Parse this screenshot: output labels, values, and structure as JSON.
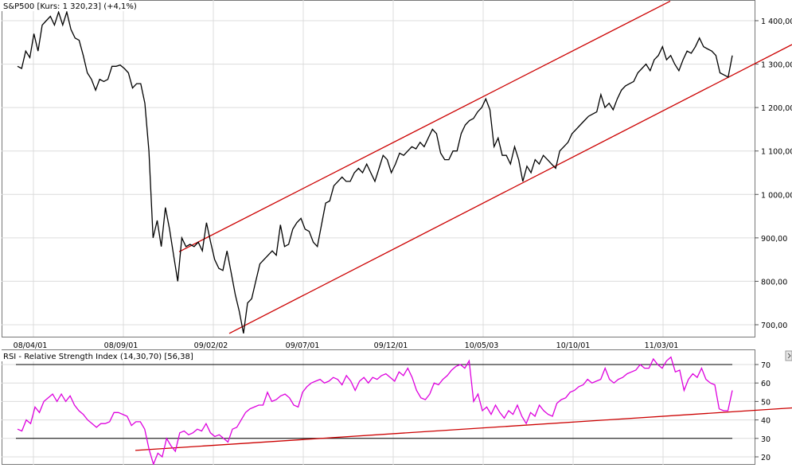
{
  "chart_data": [
    {
      "type": "line",
      "title": "S&P500 [Kurs: 1 320,23] (+4,1%)",
      "xlabel": "",
      "ylabel": "",
      "ylim": [
        680,
        1440
      ],
      "y_ticks": [
        "700,00",
        "800,00",
        "900,00",
        "1 000,00",
        "1 100,00",
        "1 200,00",
        "1 300,00",
        "1 400,00"
      ],
      "x_ticks": [
        "08/04/01",
        "08/09/01",
        "09/02/02",
        "09/07/01",
        "09/12/01",
        "10/05/03",
        "10/10/01",
        "11/03/01"
      ],
      "grid": true,
      "line_color": "#000000",
      "series": [
        {
          "values": [
            1295,
            1290,
            1330,
            1315,
            1370,
            1330,
            1390,
            1400,
            1410,
            1390,
            1420,
            1390,
            1420,
            1380,
            1360,
            1355,
            1320,
            1280,
            1265,
            1240,
            1265,
            1260,
            1265,
            1295,
            1295,
            1298,
            1290,
            1280,
            1245,
            1255,
            1255,
            1210,
            1100,
            900,
            940,
            880,
            970,
            920,
            860,
            800,
            900,
            880,
            885,
            880,
            890,
            870,
            935,
            890,
            850,
            830,
            825,
            870,
            820,
            770,
            730,
            680,
            750,
            760,
            800,
            840,
            850,
            860,
            870,
            860,
            930,
            880,
            885,
            920,
            935,
            945,
            920,
            915,
            890,
            880,
            930,
            980,
            985,
            1020,
            1030,
            1040,
            1030,
            1030,
            1050,
            1060,
            1050,
            1070,
            1050,
            1030,
            1060,
            1090,
            1080,
            1050,
            1070,
            1095,
            1090,
            1100,
            1110,
            1105,
            1120,
            1110,
            1130,
            1150,
            1140,
            1095,
            1080,
            1080,
            1100,
            1100,
            1140,
            1160,
            1170,
            1175,
            1190,
            1200,
            1220,
            1195,
            1110,
            1130,
            1090,
            1090,
            1070,
            1110,
            1080,
            1030,
            1065,
            1050,
            1080,
            1070,
            1090,
            1080,
            1070,
            1060,
            1100,
            1110,
            1120,
            1140,
            1150,
            1160,
            1170,
            1180,
            1185,
            1190,
            1230,
            1200,
            1210,
            1195,
            1220,
            1240,
            1250,
            1255,
            1260,
            1280,
            1290,
            1300,
            1285,
            1310,
            1320,
            1340,
            1310,
            1320,
            1300,
            1285,
            1310,
            1330,
            1325,
            1340,
            1360,
            1340,
            1335,
            1330,
            1320,
            1280,
            1275,
            1270,
            1320
          ]
        }
      ],
      "trendlines": [
        {
          "name": "upper-channel",
          "color": "#cc0000",
          "x": [
            225,
            842
          ],
          "y": [
            868,
            1445
          ]
        },
        {
          "name": "lower-channel",
          "color": "#cc0000",
          "x": [
            288,
            995
          ],
          "y": [
            680,
            1345
          ]
        }
      ]
    },
    {
      "type": "line",
      "title": "RSI - Relative Strength Index (14,30,70) [56,38]",
      "xlabel": "",
      "ylabel": "",
      "ylim": [
        18,
        75
      ],
      "y_ticks": [
        "20",
        "30",
        "40",
        "50",
        "60",
        "70"
      ],
      "grid": true,
      "line_color": "#dd00dd",
      "levels": [
        30,
        70
      ],
      "series": [
        {
          "values": [
            35,
            34,
            40,
            38,
            47,
            44,
            50,
            52,
            54,
            50,
            54,
            50,
            53,
            48,
            45,
            43,
            40,
            38,
            36,
            38,
            38,
            39,
            44,
            44,
            43,
            42,
            37,
            39,
            39,
            35,
            24,
            16,
            22,
            20,
            30,
            26,
            23,
            33,
            34,
            32,
            33,
            35,
            34,
            38,
            33,
            31,
            32,
            30,
            28,
            35,
            36,
            40,
            44,
            46,
            47,
            48,
            48,
            55,
            50,
            51,
            53,
            54,
            52,
            48,
            47,
            55,
            58,
            60,
            61,
            62,
            60,
            61,
            63,
            62,
            59,
            64,
            61,
            56,
            61,
            63,
            60,
            63,
            62,
            64,
            65,
            63,
            61,
            66,
            64,
            68,
            63,
            56,
            52,
            51,
            54,
            60,
            59,
            62,
            64,
            67,
            69,
            70,
            68,
            72,
            50,
            54,
            45,
            47,
            43,
            48,
            44,
            41,
            45,
            43,
            48,
            42,
            38,
            44,
            42,
            48,
            45,
            43,
            42,
            49,
            51,
            52,
            55,
            56,
            58,
            59,
            62,
            60,
            61,
            62,
            68,
            62,
            60,
            62,
            63,
            65,
            66,
            67,
            70,
            68,
            68,
            73,
            70,
            68,
            72,
            74,
            66,
            67,
            56,
            62,
            65,
            63,
            68,
            62,
            60,
            59,
            46,
            45,
            45,
            56
          ]
        }
      ],
      "trendlines": [
        {
          "name": "rsi-support",
          "color": "#cc0000",
          "x": [
            170,
            995
          ],
          "y": [
            23.5,
            46.5
          ]
        }
      ]
    }
  ]
}
